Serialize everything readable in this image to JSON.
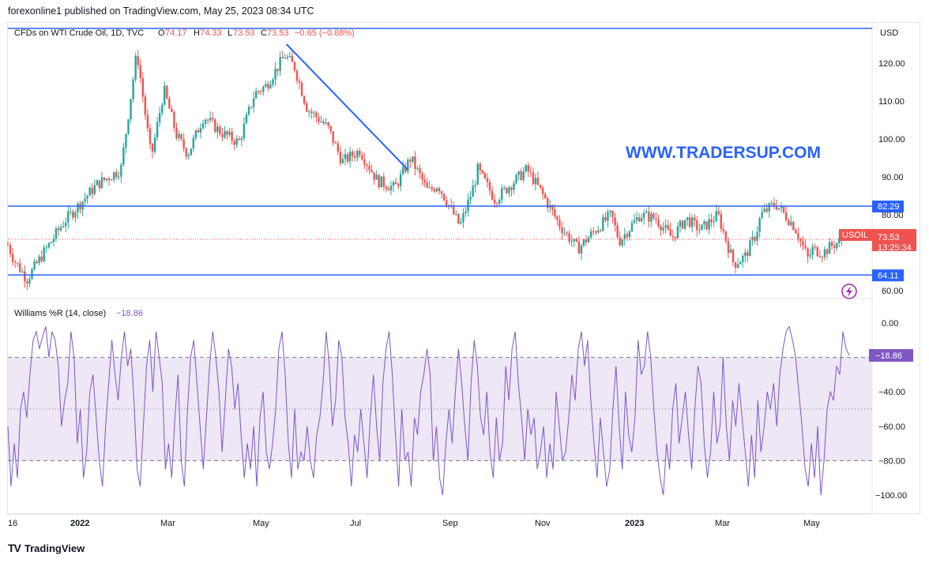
{
  "header": {
    "publish_line": "forexonline1 published on TradingView.com, May 25, 2023 08:34 UTC"
  },
  "legend": {
    "symbol": "CFDs on WTI Crude Oil, 1D, TVC",
    "open_label": "O",
    "open": "74.17",
    "high_label": "H",
    "high": "74.33",
    "low_label": "L",
    "low": "73.53",
    "close_label": "C",
    "close": "73.53",
    "change": "−0.65 (−0.88%)"
  },
  "watermark": "WWW.TRADERSUP.COM",
  "price_axis": {
    "currency": "USD",
    "ticks": [
      "120.00",
      "110.00",
      "100.00",
      "90.00",
      "80.00",
      "60.00"
    ],
    "levels": [
      "82.29",
      "64.11"
    ],
    "symbol_tag": "USOIL",
    "last_price": "73.53",
    "countdown": "13:25:34"
  },
  "indicator": {
    "title": "Williams %R (14, close)",
    "value": "−18.86",
    "ticks": [
      "0.00",
      "−40.00",
      "−60.00",
      "−80.00",
      "−100.00"
    ],
    "value_tag": "−18.86"
  },
  "time_axis": {
    "labels": [
      "16",
      "2022",
      "Mar",
      "May",
      "Jul",
      "Sep",
      "Nov",
      "2023",
      "Mar",
      "May"
    ]
  },
  "footer": {
    "brand": "TradingView",
    "logo": "TV"
  },
  "colors": {
    "up": "#26a69a",
    "down": "#ef5350",
    "line": "#2962ff",
    "willr": "#7e57c2",
    "band": "#ede7f6",
    "watermark": "#2962ff"
  },
  "chart_data": [
    {
      "type": "candlestick",
      "title": "CFDs on WTI Crude Oil, 1D, TVC",
      "currency": "USD",
      "ylim": [
        56,
        132
      ],
      "x_range": [
        "2021-12-16",
        "2023-05-25"
      ],
      "horizontal_levels": [
        82.29,
        64.11
      ],
      "last_price": 73.53,
      "trendline": {
        "from": {
          "x": "2022-06-09",
          "y": 125
        },
        "to": {
          "x": "2022-08-24",
          "y": 92
        }
      },
      "anchors": [
        {
          "x": "2021-12-16",
          "y": 72
        },
        {
          "x": "2021-12-20",
          "y": 68
        },
        {
          "x": "2021-12-28",
          "y": 63
        },
        {
          "x": "2022-01-06",
          "y": 69
        },
        {
          "x": "2022-01-20",
          "y": 78
        },
        {
          "x": "2022-02-10",
          "y": 88
        },
        {
          "x": "2022-02-25",
          "y": 92
        },
        {
          "x": "2022-03-07",
          "y": 123
        },
        {
          "x": "2022-03-16",
          "y": 95
        },
        {
          "x": "2022-03-24",
          "y": 113
        },
        {
          "x": "2022-04-01",
          "y": 101
        },
        {
          "x": "2022-04-08",
          "y": 96
        },
        {
          "x": "2022-04-18",
          "y": 106
        },
        {
          "x": "2022-04-28",
          "y": 102
        },
        {
          "x": "2022-05-10",
          "y": 99
        },
        {
          "x": "2022-05-20",
          "y": 112
        },
        {
          "x": "2022-05-27",
          "y": 114
        },
        {
          "x": "2022-06-08",
          "y": 122
        },
        {
          "x": "2022-06-14",
          "y": 119
        },
        {
          "x": "2022-06-22",
          "y": 108
        },
        {
          "x": "2022-06-30",
          "y": 105
        },
        {
          "x": "2022-07-05",
          "y": 103
        },
        {
          "x": "2022-07-14",
          "y": 94
        },
        {
          "x": "2022-07-25",
          "y": 97
        },
        {
          "x": "2022-08-05",
          "y": 89
        },
        {
          "x": "2022-08-16",
          "y": 87
        },
        {
          "x": "2022-08-26",
          "y": 95
        },
        {
          "x": "2022-09-06",
          "y": 86
        },
        {
          "x": "2022-09-12",
          "y": 88
        },
        {
          "x": "2022-09-26",
          "y": 77
        },
        {
          "x": "2022-10-05",
          "y": 88
        },
        {
          "x": "2022-10-07",
          "y": 92
        },
        {
          "x": "2022-10-18",
          "y": 84
        },
        {
          "x": "2022-11-07",
          "y": 92
        },
        {
          "x": "2022-11-16",
          "y": 86
        },
        {
          "x": "2022-11-28",
          "y": 77
        },
        {
          "x": "2022-12-09",
          "y": 71
        },
        {
          "x": "2022-12-20",
          "y": 76
        },
        {
          "x": "2022-12-30",
          "y": 80
        },
        {
          "x": "2023-01-04",
          "y": 73
        },
        {
          "x": "2023-01-17",
          "y": 80
        },
        {
          "x": "2023-01-27",
          "y": 79
        },
        {
          "x": "2023-02-06",
          "y": 74
        },
        {
          "x": "2023-02-15",
          "y": 79
        },
        {
          "x": "2023-02-24",
          "y": 76
        },
        {
          "x": "2023-03-07",
          "y": 80
        },
        {
          "x": "2023-03-17",
          "y": 67
        },
        {
          "x": "2023-03-24",
          "y": 69
        },
        {
          "x": "2023-03-31",
          "y": 75
        },
        {
          "x": "2023-04-03",
          "y": 80
        },
        {
          "x": "2023-04-12",
          "y": 83
        },
        {
          "x": "2023-04-24",
          "y": 77
        },
        {
          "x": "2023-05-03",
          "y": 68
        },
        {
          "x": "2023-05-05",
          "y": 71
        },
        {
          "x": "2023-05-12",
          "y": 70
        },
        {
          "x": "2023-05-18",
          "y": 72
        },
        {
          "x": "2023-05-25",
          "y": 73.53
        }
      ]
    },
    {
      "type": "line",
      "title": "Williams %R (14, close)",
      "ylim": [
        -100,
        0
      ],
      "band": [
        -80,
        -20
      ],
      "midline": -50,
      "last_value": -18.86,
      "values": [
        -60,
        -95,
        -70,
        -90,
        -50,
        -40,
        -55,
        -30,
        -10,
        -5,
        -15,
        -8,
        -2,
        -20,
        -5,
        -10,
        -25,
        -60,
        -45,
        -35,
        -5,
        -20,
        -70,
        -50,
        -90,
        -75,
        -40,
        -30,
        -55,
        -80,
        -95,
        -60,
        -35,
        -10,
        -30,
        -45,
        -20,
        -5,
        -25,
        -15,
        -45,
        -85,
        -95,
        -60,
        -25,
        -10,
        -40,
        -5,
        -20,
        -35,
        -85,
        -70,
        -90,
        -55,
        -30,
        -80,
        -95,
        -50,
        -20,
        -10,
        -35,
        -60,
        -85,
        -55,
        -25,
        -5,
        -20,
        -40,
        -75,
        -45,
        -15,
        -25,
        -50,
        -35,
        -65,
        -90,
        -70,
        -85,
        -60,
        -95,
        -55,
        -40,
        -75,
        -85,
        -70,
        -50,
        -15,
        -5,
        -30,
        -70,
        -90,
        -50,
        -85,
        -75,
        -80,
        -60,
        -80,
        -90,
        -65,
        -55,
        -35,
        -5,
        -25,
        -60,
        -45,
        -10,
        -20,
        -55,
        -70,
        -95,
        -65,
        -75,
        -50,
        -70,
        -90,
        -55,
        -30,
        -60,
        -80,
        -35,
        -15,
        -5,
        -30,
        -65,
        -95,
        -50,
        -80,
        -75,
        -95,
        -55,
        -65,
        -40,
        -30,
        -15,
        -30,
        -80,
        -60,
        -90,
        -100,
        -70,
        -50,
        -70,
        -40,
        -15,
        -35,
        -60,
        -80,
        -35,
        -10,
        -25,
        -55,
        -65,
        -40,
        -75,
        -90,
        -55,
        -80,
        -70,
        -25,
        -45,
        -15,
        -5,
        -35,
        -55,
        -80,
        -50,
        -65,
        -55,
        -85,
        -75,
        -60,
        -90,
        -70,
        -85,
        -40,
        -60,
        -80,
        -75,
        -55,
        -30,
        -45,
        -15,
        -5,
        -25,
        -10,
        -45,
        -70,
        -90,
        -55,
        -75,
        -95,
        -85,
        -50,
        -25,
        -60,
        -85,
        -40,
        -65,
        -75,
        -55,
        -10,
        -30,
        -25,
        -5,
        -20,
        -50,
        -75,
        -90,
        -100,
        -70,
        -85,
        -50,
        -35,
        -70,
        -55,
        -40,
        -65,
        -85,
        -50,
        -25,
        -35,
        -70,
        -90,
        -75,
        -40,
        -70,
        -60,
        -20,
        -60,
        -80,
        -45,
        -60,
        -35,
        -55,
        -75,
        -95,
        -65,
        -90,
        -45,
        -75,
        -60,
        -40,
        -50,
        -35,
        -60,
        -30,
        -15,
        -5,
        -2,
        -10,
        -20,
        -40,
        -60,
        -85,
        -95,
        -70,
        -90,
        -60,
        -100,
        -80,
        -50,
        -40,
        -45,
        -25,
        -30,
        -5,
        -15,
        -18.86
      ]
    }
  ]
}
